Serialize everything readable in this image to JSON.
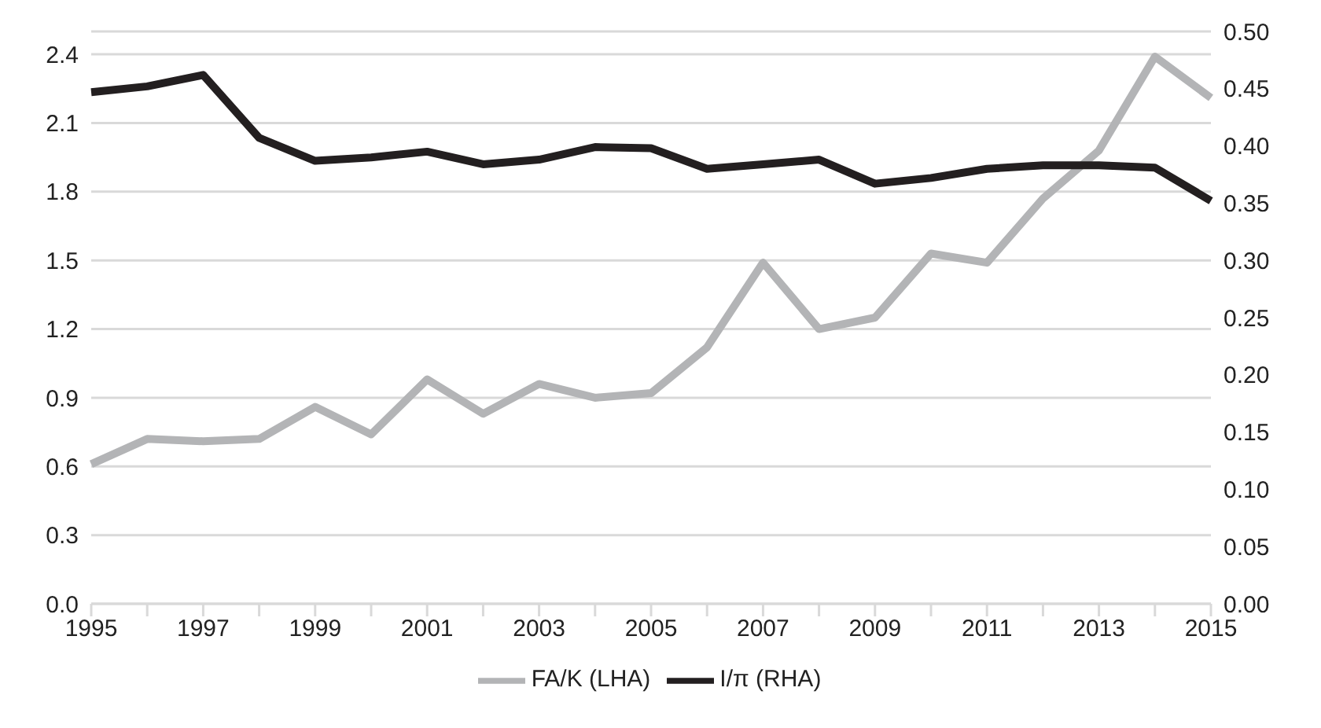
{
  "chart_data": {
    "type": "line",
    "categories": [
      "1995",
      null,
      "1997",
      null,
      "1999",
      null,
      "2001",
      null,
      "2003",
      null,
      "2005",
      null,
      "2007",
      null,
      "2009",
      null,
      "2011",
      null,
      "2013",
      null,
      "2015"
    ],
    "series": [
      {
        "name": "FA/K (LHA)",
        "color": "#b3b4b6",
        "values": [
          0.61,
          0.72,
          0.71,
          0.72,
          0.86,
          0.74,
          0.98,
          0.83,
          0.96,
          0.9,
          0.92,
          1.12,
          1.49,
          1.2,
          1.25,
          1.53,
          1.49,
          1.77,
          1.98,
          2.39,
          2.21
        ]
      },
      {
        "name": "I/π (RHA)",
        "color": "#231f20",
        "axis": "y2",
        "values": [
          0.447,
          0.452,
          0.462,
          0.407,
          0.387,
          0.39,
          0.395,
          0.384,
          0.388,
          0.399,
          0.398,
          0.38,
          0.384,
          0.388,
          0.367,
          0.372,
          0.38,
          0.383,
          0.383,
          0.381,
          0.352
        ]
      }
    ],
    "ylim": [
      0,
      2.5
    ],
    "yticks": [
      {
        "value": 0,
        "label": "0.0"
      },
      0.3,
      0.6,
      0.9,
      1.2,
      1.5,
      1.8,
      2.1,
      2.4
    ],
    "y2lim": [
      0,
      0.5
    ],
    "y2ticks": [
      {
        "value": 0,
        "label": "0.00"
      },
      0.05,
      {
        "value": 0.1,
        "label": "0.10"
      },
      0.15,
      {
        "value": 0.2,
        "label": "0.20"
      },
      0.25,
      {
        "value": 0.3,
        "label": "0.30"
      },
      0.35,
      {
        "value": 0.4,
        "label": "0.40"
      },
      0.45,
      {
        "value": 0.5,
        "label": "0.50"
      }
    ],
    "grid": "y",
    "legend": "bottom",
    "marker": "none",
    "line_style": "solid"
  }
}
